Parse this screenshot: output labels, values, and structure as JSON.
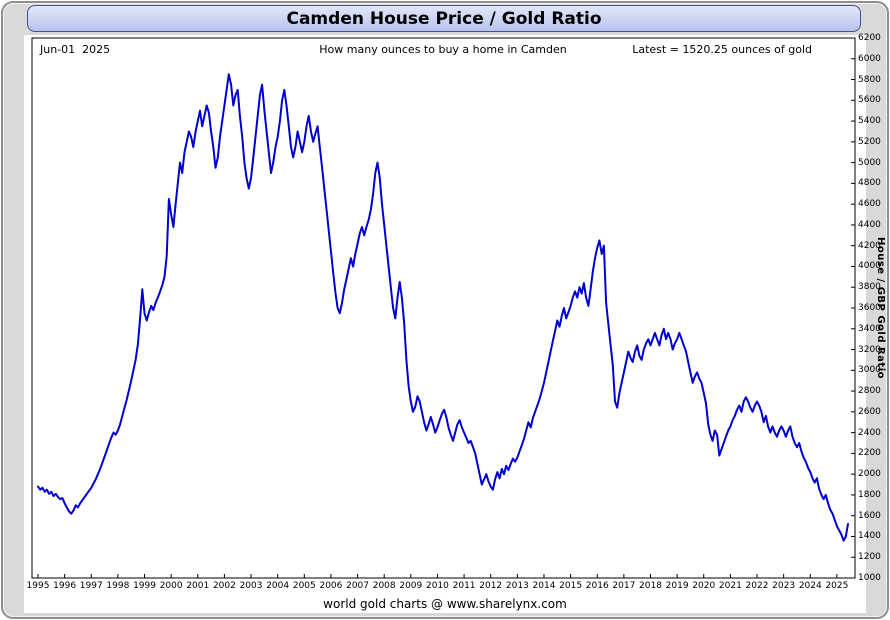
{
  "header": {
    "title": "Camden House Price / Gold Ratio"
  },
  "chart": {
    "date_label": "Jun-01  2025",
    "subtitle": "How many ounces to buy a home in Camden",
    "latest_label": "Latest = 1520.25 ounces of gold",
    "y_axis_label": "House / GBP Gold Ratio",
    "footer": "world gold charts @ www.sharelynx.com",
    "line_color": "#0000d0"
  },
  "chart_data": {
    "type": "line",
    "title": "Camden House Price / Gold Ratio",
    "subtitle": "How many ounces to buy a home in Camden",
    "ylabel": "House / GBP Gold Ratio",
    "xlabel": "",
    "ylim": [
      1000,
      6200
    ],
    "y_tick_step": 200,
    "y_ticks": [
      1000,
      1200,
      1400,
      1600,
      1800,
      2000,
      2200,
      2400,
      2600,
      2800,
      3000,
      3200,
      3400,
      3600,
      3800,
      4000,
      4200,
      4400,
      4600,
      4800,
      5000,
      5200,
      5400,
      5600,
      5800,
      6000,
      6200
    ],
    "x_ticks": [
      1995,
      1996,
      1997,
      1998,
      1999,
      2000,
      2001,
      2002,
      2003,
      2004,
      2005,
      2006,
      2007,
      2008,
      2009,
      2010,
      2011,
      2012,
      2013,
      2014,
      2015,
      2016,
      2017,
      2018,
      2019,
      2020,
      2021,
      2022,
      2023,
      2024,
      2025
    ],
    "x_start_year": 1995,
    "x_end": 2025.45,
    "frequency": "monthly",
    "latest_value": 1520.25,
    "latest_date": "Jun-01 2025",
    "grid": false,
    "legend": "none",
    "series": [
      {
        "name": "House / GBP Gold Ratio (ounces of gold per home)",
        "values": [
          1880,
          1850,
          1870,
          1830,
          1850,
          1810,
          1830,
          1790,
          1810,
          1780,
          1760,
          1770,
          1720,
          1680,
          1640,
          1620,
          1650,
          1700,
          1680,
          1720,
          1750,
          1780,
          1810,
          1840,
          1870,
          1910,
          1950,
          2000,
          2050,
          2110,
          2170,
          2230,
          2290,
          2350,
          2400,
          2380,
          2420,
          2480,
          2560,
          2640,
          2720,
          2810,
          2900,
          3000,
          3100,
          3250,
          3500,
          3780,
          3550,
          3480,
          3560,
          3620,
          3580,
          3650,
          3700,
          3760,
          3820,
          3900,
          4100,
          4650,
          4500,
          4380,
          4600,
          4800,
          5000,
          4900,
          5100,
          5200,
          5300,
          5250,
          5150,
          5300,
          5400,
          5500,
          5350,
          5450,
          5550,
          5480,
          5300,
          5150,
          4950,
          5050,
          5250,
          5400,
          5550,
          5700,
          5850,
          5750,
          5550,
          5650,
          5700,
          5450,
          5250,
          5000,
          4850,
          4750,
          4850,
          5050,
          5250,
          5450,
          5650,
          5750,
          5500,
          5300,
          5100,
          4900,
          5000,
          5150,
          5250,
          5400,
          5600,
          5700,
          5550,
          5350,
          5150,
          5050,
          5150,
          5300,
          5200,
          5100,
          5200,
          5350,
          5450,
          5300,
          5200,
          5280,
          5350,
          5150,
          4950,
          4750,
          4550,
          4350,
          4150,
          3950,
          3750,
          3600,
          3550,
          3650,
          3780,
          3880,
          3980,
          4080,
          4000,
          4120,
          4220,
          4320,
          4380,
          4300,
          4380,
          4450,
          4550,
          4700,
          4900,
          5000,
          4850,
          4600,
          4400,
          4200,
          4000,
          3800,
          3600,
          3500,
          3700,
          3850,
          3700,
          3450,
          3100,
          2850,
          2700,
          2600,
          2650,
          2750,
          2700,
          2600,
          2500,
          2420,
          2480,
          2550,
          2480,
          2400,
          2450,
          2520,
          2580,
          2620,
          2550,
          2450,
          2380,
          2320,
          2400,
          2480,
          2520,
          2450,
          2400,
          2350,
          2300,
          2320,
          2260,
          2200,
          2100,
          2000,
          1900,
          1950,
          2000,
          1930,
          1880,
          1850,
          1950,
          2020,
          1960,
          2050,
          2000,
          2080,
          2040,
          2100,
          2150,
          2120,
          2160,
          2220,
          2280,
          2340,
          2420,
          2500,
          2450,
          2540,
          2600,
          2660,
          2720,
          2800,
          2880,
          2980,
          3080,
          3180,
          3280,
          3380,
          3480,
          3420,
          3520,
          3600,
          3500,
          3560,
          3620,
          3700,
          3760,
          3700,
          3800,
          3740,
          3840,
          3700,
          3620,
          3780,
          3950,
          4080,
          4180,
          4250,
          4120,
          4200,
          3650,
          3450,
          3250,
          3050,
          2700,
          2640,
          2780,
          2880,
          2980,
          3080,
          3180,
          3120,
          3080,
          3180,
          3240,
          3140,
          3100,
          3200,
          3260,
          3300,
          3240,
          3300,
          3360,
          3300,
          3240,
          3340,
          3400,
          3300,
          3360,
          3300,
          3200,
          3260,
          3300,
          3360,
          3300,
          3240,
          3180,
          3080,
          2980,
          2880,
          2940,
          2980,
          2920,
          2880,
          2780,
          2680,
          2480,
          2380,
          2320,
          2420,
          2380,
          2180,
          2240,
          2300,
          2360,
          2420,
          2460,
          2520,
          2560,
          2620,
          2660,
          2600,
          2700,
          2740,
          2700,
          2640,
          2600,
          2660,
          2700,
          2660,
          2600,
          2500,
          2560,
          2460,
          2400,
          2460,
          2400,
          2360,
          2420,
          2460,
          2420,
          2360,
          2420,
          2460,
          2360,
          2300,
          2260,
          2300,
          2220,
          2160,
          2120,
          2060,
          2020,
          1960,
          1920,
          1960,
          1860,
          1800,
          1760,
          1800,
          1720,
          1660,
          1620,
          1560,
          1500,
          1460,
          1420,
          1360,
          1400,
          1520.25
        ]
      }
    ]
  }
}
